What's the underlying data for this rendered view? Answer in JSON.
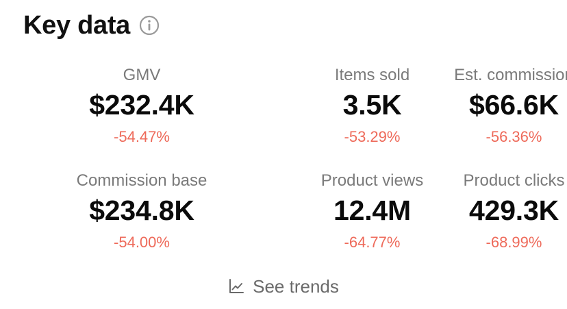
{
  "header": {
    "title": "Key data",
    "info_icon": "info-icon"
  },
  "metrics": [
    {
      "label": "GMV",
      "value": "$232.4K",
      "change": "-54.47%"
    },
    {
      "label": "Items sold",
      "value": "3.5K",
      "change": "-53.29%"
    },
    {
      "label": "Est. commission",
      "value": "$66.6K",
      "change": "-56.36%"
    },
    {
      "label": "Commission base",
      "value": "$234.8K",
      "change": "-54.00%"
    },
    {
      "label": "Product views",
      "value": "12.4M",
      "change": "-64.77%"
    },
    {
      "label": "Product clicks",
      "value": "429.3K",
      "change": "-68.99%"
    }
  ],
  "footer": {
    "see_trends_label": "See trends",
    "trend_icon": "line-chart-icon"
  },
  "colors": {
    "title": "#111111",
    "label": "#7a7a7a",
    "value": "#0b0b0b",
    "negative_change": "#ee6a5a",
    "link": "#6a6a6a"
  }
}
